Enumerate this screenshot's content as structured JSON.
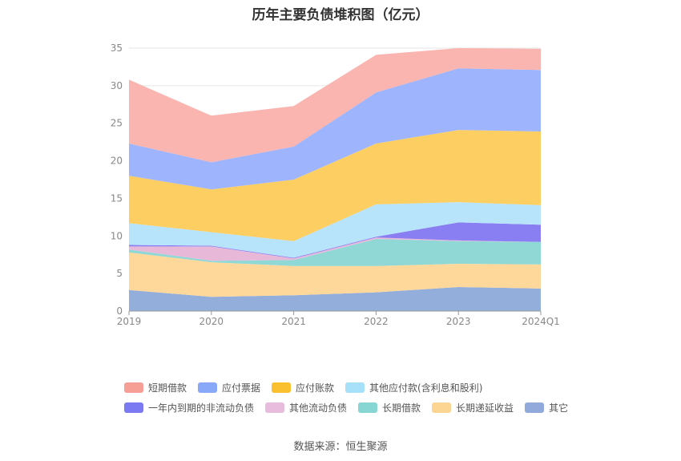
{
  "title": "历年主要负债堆积图（亿元）",
  "source": "数据来源：恒生聚源",
  "chart_data": {
    "type": "area",
    "stacked": true,
    "title": "历年主要负债堆积图（亿元）",
    "x": [
      "2019",
      "2020",
      "2021",
      "2022",
      "2023",
      "2024Q1"
    ],
    "ylim": [
      0,
      35
    ],
    "yticks": [
      0,
      5,
      10,
      15,
      20,
      25,
      30,
      35
    ],
    "grid": true,
    "legend_position": "bottom",
    "series": [
      {
        "name": "其它",
        "color": "#94aedb",
        "values": [
          2.8,
          1.9,
          2.1,
          2.5,
          3.2,
          3.0
        ]
      },
      {
        "name": "长期递延收益",
        "color": "#fdd89a",
        "values": [
          5.0,
          4.6,
          3.9,
          3.5,
          3.1,
          3.2
        ]
      },
      {
        "name": "长期借款",
        "color": "#8fd8d6",
        "values": [
          0.4,
          0.2,
          0.8,
          3.6,
          3.0,
          3.0
        ]
      },
      {
        "name": "其他流动负债",
        "color": "#e8b8d8",
        "values": [
          0.4,
          1.9,
          0.2,
          0.2,
          0.1,
          0.0
        ]
      },
      {
        "name": "一年内到期的非流动负债",
        "color": "#8a7ff2",
        "values": [
          0.2,
          0.1,
          0.1,
          0.1,
          2.4,
          2.3
        ]
      },
      {
        "name": "其他应付款(含利息和股利)",
        "color": "#b8e4fb",
        "values": [
          2.9,
          1.8,
          2.2,
          4.3,
          2.7,
          2.6
        ]
      },
      {
        "name": "应付账款",
        "color": "#fdce62",
        "values": [
          6.3,
          5.7,
          8.2,
          8.1,
          9.6,
          9.8
        ]
      },
      {
        "name": "应付票据",
        "color": "#9eb5fd",
        "values": [
          4.3,
          3.6,
          4.4,
          6.8,
          8.2,
          8.2
        ]
      },
      {
        "name": "短期借款",
        "color": "#fbb5b0",
        "values": [
          8.5,
          6.2,
          5.4,
          5.0,
          2.7,
          2.8
        ]
      }
    ]
  },
  "legend": {
    "row1": [
      {
        "name": "短期借款",
        "color": "#f59f97"
      },
      {
        "name": "应付票据",
        "color": "#8aa8f8"
      },
      {
        "name": "应付账款",
        "color": "#fbc02f"
      },
      {
        "name": "其他应付款(含利息和股利)",
        "color": "#a6e0f9"
      }
    ],
    "row2": [
      {
        "name": "一年内到期的非流动负债",
        "color": "#7b7af2"
      },
      {
        "name": "其他流动负债",
        "color": "#e7bcdd"
      },
      {
        "name": "长期借款",
        "color": "#88d6d3"
      },
      {
        "name": "长期递延收益",
        "color": "#fdd593"
      },
      {
        "name": "其它",
        "color": "#92aadb"
      }
    ]
  }
}
